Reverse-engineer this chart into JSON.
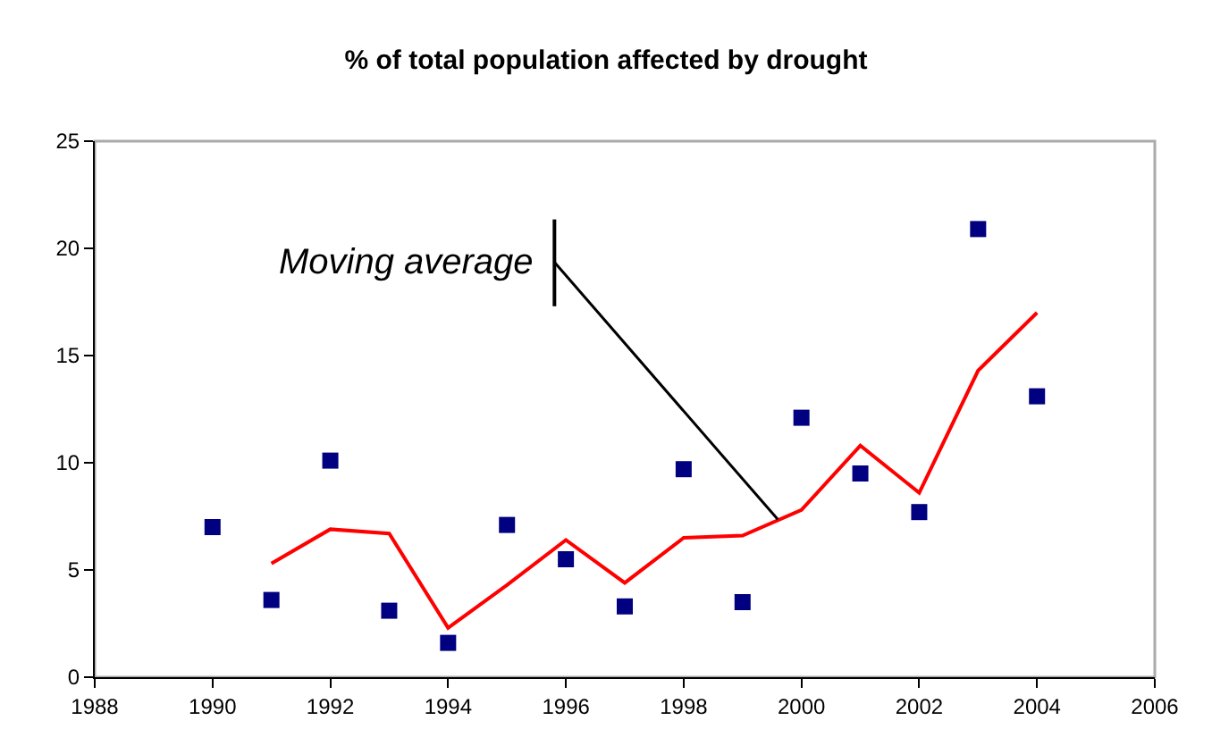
{
  "chart_data": {
    "type": "scatter",
    "title": "% of total population affected by drought",
    "x": [
      1990,
      1991,
      1992,
      1993,
      1994,
      1995,
      1996,
      1997,
      1998,
      1999,
      2000,
      2001,
      2002,
      2003,
      2004
    ],
    "series": [
      {
        "color": "#000080",
        "marker": "square",
        "values": [
          7.0,
          3.6,
          10.1,
          3.1,
          1.6,
          7.1,
          5.5,
          3.3,
          9.7,
          3.5,
          12.1,
          9.5,
          7.7,
          20.9,
          13.1
        ]
      },
      {
        "type": "line",
        "color": "#ff0000",
        "marker": "none",
        "line_style": "solid",
        "x": [
          1991,
          1992,
          1993,
          1994,
          1995,
          1996,
          1997,
          1998,
          1999,
          2000,
          2001,
          2002,
          2003,
          2004
        ],
        "values": [
          5.3,
          6.9,
          6.7,
          2.3,
          4.3,
          6.4,
          4.4,
          6.5,
          6.6,
          7.8,
          10.8,
          8.6,
          14.3,
          17.0
        ]
      }
    ],
    "annotations": [
      {
        "text": "Moving average",
        "x": 1999.6,
        "y": 7.35
      }
    ],
    "xlim": [
      1988,
      2006
    ],
    "xticks": [
      1988,
      1990,
      1992,
      1994,
      1996,
      1998,
      2000,
      2002,
      2004,
      2006
    ],
    "ylim": [
      0,
      25
    ],
    "yticks": [
      0,
      5,
      10,
      15,
      20,
      25
    ],
    "grid": false
  }
}
